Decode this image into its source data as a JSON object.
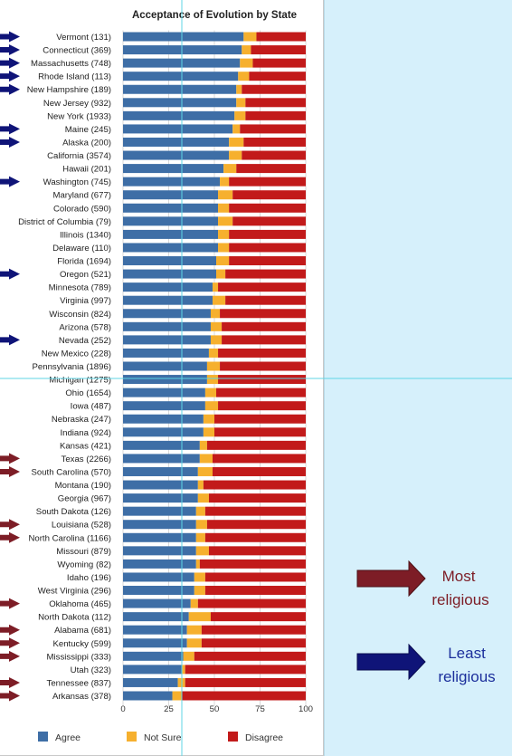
{
  "chart_data": {
    "type": "bar",
    "stacked": true,
    "orientation": "horizontal",
    "title": "Acceptance of Evolution by State",
    "xlabel": "",
    "ylabel": "",
    "xlim": [
      0,
      100
    ],
    "x_ticks": [
      0,
      25,
      50,
      75,
      100
    ],
    "grid": true,
    "legend_position": "bottom",
    "categories": [
      "Vermont (131)",
      "Connecticut (369)",
      "Massachusetts (748)",
      "Rhode Island (113)",
      "New Hampshire (189)",
      "New Jersey (932)",
      "New York (1933)",
      "Maine (245)",
      "Alaska (200)",
      "California (3574)",
      "Hawaii (201)",
      "Washington (745)",
      "Maryland (677)",
      "Colorado (590)",
      "District of Columbia (79)",
      "Illinois (1340)",
      "Delaware (110)",
      "Florida (1694)",
      "Oregon (521)",
      "Minnesota (789)",
      "Virginia (997)",
      "Wisconsin (824)",
      "Arizona (578)",
      "Nevada (252)",
      "New Mexico (228)",
      "Pennsylvania (1896)",
      "Michigan (1275)",
      "Ohio (1654)",
      "Iowa (487)",
      "Nebraska (247)",
      "Indiana (924)",
      "Kansas (421)",
      "Texas (2266)",
      "South Carolina (570)",
      "Montana (190)",
      "Georgia (967)",
      "South Dakota (126)",
      "Louisiana (528)",
      "North Carolina (1166)",
      "Missouri (879)",
      "Wyoming (82)",
      "Idaho (196)",
      "West Virginia (296)",
      "Oklahoma (465)",
      "North Dakota (112)",
      "Alabama (681)",
      "Kentucky (599)",
      "Mississippi (333)",
      "Utah (323)",
      "Tennessee (837)",
      "Arkansas (378)"
    ],
    "series": [
      {
        "name": "Agree",
        "color": "#3e6ea6",
        "values": [
          66,
          65,
          64,
          63,
          62,
          62,
          61,
          60,
          58,
          58,
          55,
          53,
          52,
          52,
          52,
          52,
          52,
          51,
          51,
          49,
          49,
          48,
          48,
          48,
          47,
          46,
          46,
          45,
          45,
          44,
          44,
          42,
          42,
          41,
          41,
          41,
          40,
          40,
          40,
          40,
          40,
          39,
          39,
          37,
          36,
          35,
          35,
          33,
          32,
          30,
          27
        ]
      },
      {
        "name": "Not Sure",
        "color": "#f6b02e",
        "values": [
          7,
          5,
          7,
          6,
          3,
          5,
          6,
          4,
          8,
          7,
          7,
          5,
          8,
          6,
          8,
          6,
          6,
          7,
          5,
          3,
          7,
          5,
          6,
          6,
          5,
          7,
          6,
          6,
          7,
          6,
          6,
          4,
          7,
          8,
          3,
          6,
          5,
          6,
          5,
          7,
          2,
          6,
          6,
          4,
          12,
          8,
          8,
          6,
          2,
          4,
          5
        ]
      },
      {
        "name": "Disagree",
        "color": "#c21a1a",
        "values": [
          27,
          30,
          29,
          31,
          35,
          33,
          33,
          36,
          34,
          35,
          38,
          42,
          40,
          42,
          40,
          42,
          42,
          42,
          44,
          48,
          44,
          47,
          46,
          46,
          48,
          47,
          48,
          49,
          48,
          50,
          50,
          54,
          51,
          51,
          56,
          53,
          55,
          54,
          55,
          53,
          58,
          55,
          55,
          59,
          52,
          57,
          57,
          61,
          66,
          66,
          68
        ]
      }
    ]
  },
  "markers": {
    "least_religious": [
      "Vermont (131)",
      "Connecticut (369)",
      "Massachusetts (748)",
      "Rhode Island (113)",
      "New Hampshire (189)",
      "Maine (245)",
      "Alaska (200)",
      "Washington (745)",
      "Oregon (521)",
      "Nevada (252)"
    ],
    "most_religious": [
      "Texas (2266)",
      "South Carolina (570)",
      "Louisiana (528)",
      "North Carolina (1166)",
      "Oklahoma (465)",
      "Alabama (681)",
      "Kentucky (599)",
      "Mississippi (333)",
      "Tennessee (837)",
      "Arkansas (378)"
    ],
    "least_color": "#0f1478",
    "most_color": "#7d1d26"
  },
  "annotations": {
    "most_line1": "Most",
    "most_line2": "religious",
    "least_line1": "Least",
    "least_line2": "religious"
  }
}
